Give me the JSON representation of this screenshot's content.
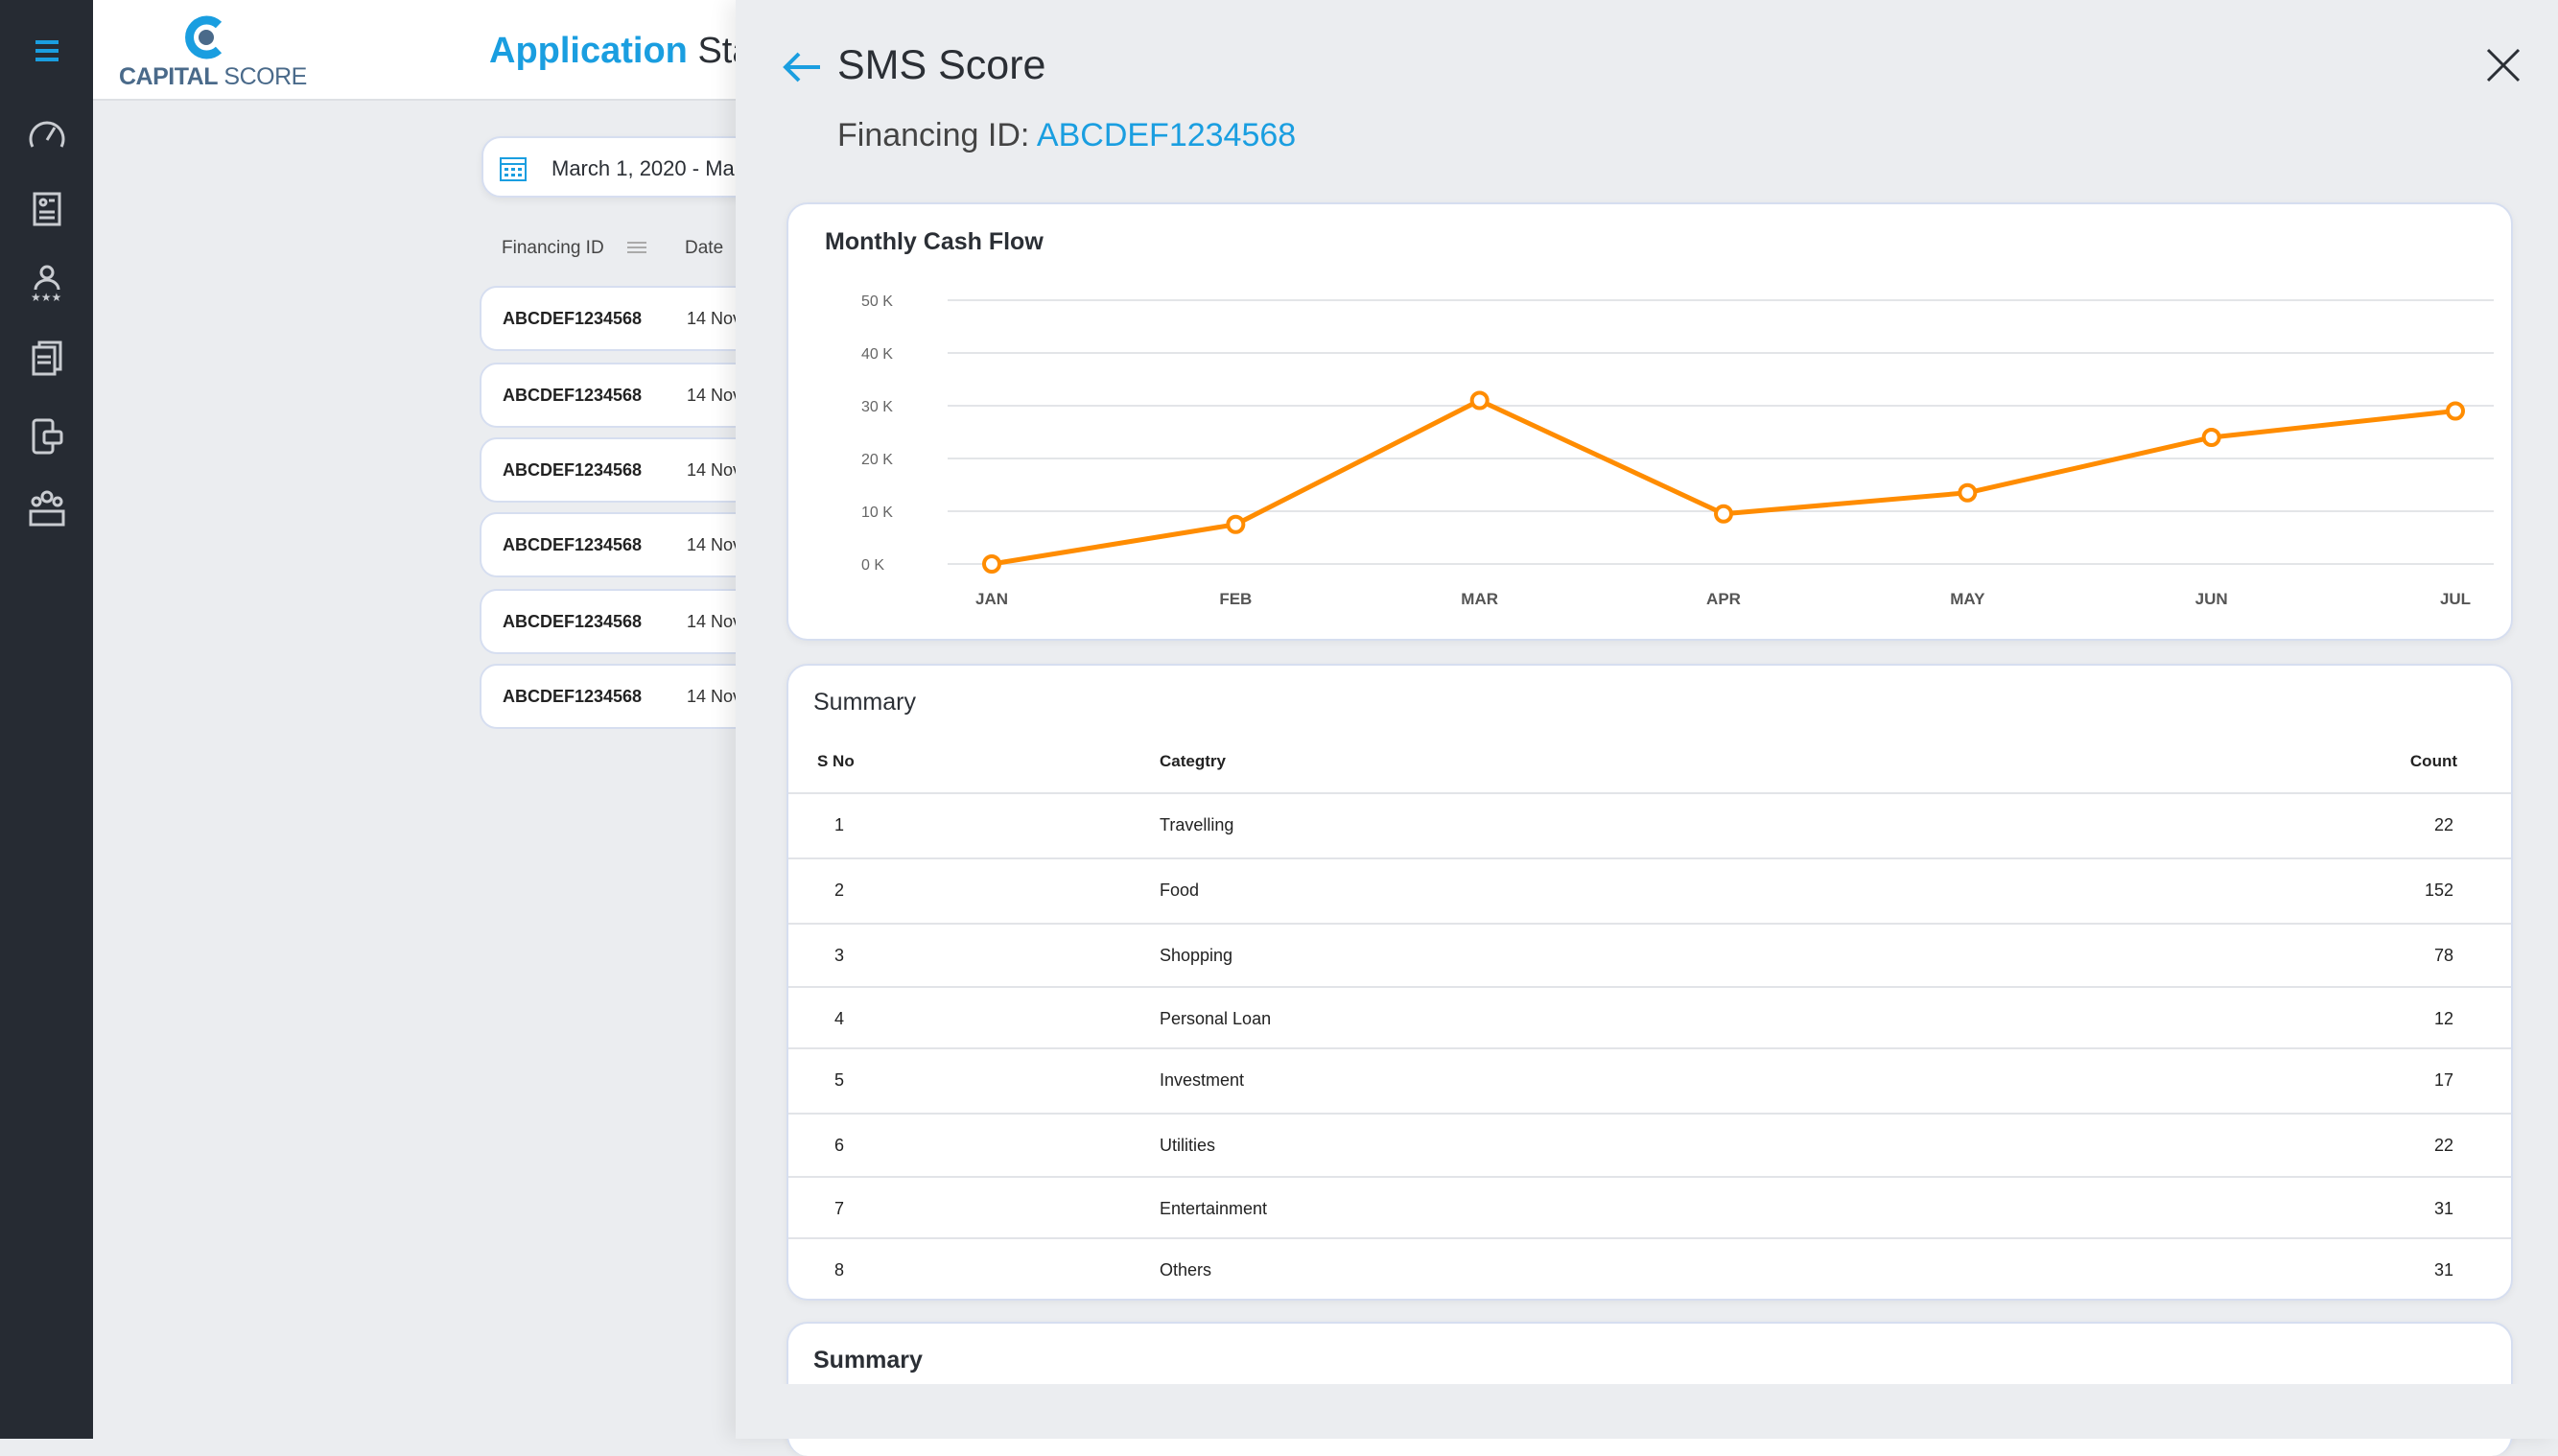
{
  "app": {
    "logo": "CAPITAL SCORE",
    "logo_bold": "CAPITAL",
    "logo_light": " SCORE",
    "title_accent": "Application",
    "title_rest": " Stat"
  },
  "sidebar": {
    "items": [
      "menu",
      "dashboard",
      "applications",
      "ratings",
      "documents",
      "sms",
      "teams"
    ]
  },
  "list": {
    "date_range": "March 1, 2020 - Ma",
    "col_financing_id": "Financing ID",
    "col_date": "Date",
    "rows": [
      {
        "id": "ABCDEF1234568",
        "date": "14 Nov"
      },
      {
        "id": "ABCDEF1234568",
        "date": "14 Nov"
      },
      {
        "id": "ABCDEF1234568",
        "date": "14 Nov"
      },
      {
        "id": "ABCDEF1234568",
        "date": "14 Nov"
      },
      {
        "id": "ABCDEF1234568",
        "date": "14 Nov"
      },
      {
        "id": "ABCDEF1234568",
        "date": "14 Nov"
      }
    ]
  },
  "panel": {
    "title": "SMS Score",
    "financing_label": "Financing ID:",
    "financing_id": "ABCDEF1234568"
  },
  "chart_data": {
    "type": "line",
    "title": "Monthly Cash Flow",
    "categories": [
      "JAN",
      "FEB",
      "MAR",
      "APR",
      "MAY",
      "JUN",
      "JUL"
    ],
    "series": [
      {
        "name": "Cash Flow",
        "values": [
          0,
          7.5,
          31,
          9.5,
          13.5,
          24,
          29
        ]
      }
    ],
    "yticks": [
      "0 K",
      "10 K",
      "20 K",
      "30 K",
      "40 K",
      "50 K"
    ],
    "ylim": [
      0,
      50
    ],
    "grid": true,
    "color": "#ff8c00"
  },
  "summary": {
    "title": "Summary",
    "headers": {
      "sno": "S No",
      "category": "Categtry",
      "count": "Count"
    },
    "rows": [
      {
        "sno": "1",
        "category": "Travelling",
        "count": "22"
      },
      {
        "sno": "2",
        "category": "Food",
        "count": "152"
      },
      {
        "sno": "3",
        "category": "Shopping",
        "count": "78"
      },
      {
        "sno": "4",
        "category": "Personal Loan",
        "count": "12"
      },
      {
        "sno": "5",
        "category": "Investment",
        "count": "17"
      },
      {
        "sno": "6",
        "category": "Utilities",
        "count": "22"
      },
      {
        "sno": "7",
        "category": "Entertainment",
        "count": "31"
      },
      {
        "sno": "8",
        "category": "Others",
        "count": "31"
      }
    ]
  },
  "summary2": {
    "title": "Summary"
  }
}
